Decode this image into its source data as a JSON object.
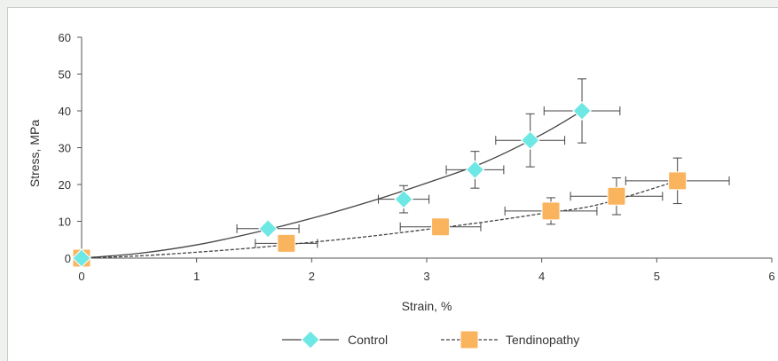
{
  "chart_data": {
    "type": "scatter",
    "xlabel": "Strain, %",
    "ylabel": "Stress, MPa",
    "xlim": [
      0,
      6
    ],
    "ylim": [
      0,
      60
    ],
    "xticks": [
      "0",
      "1",
      "2",
      "3",
      "4",
      "5",
      "6"
    ],
    "yticks": [
      "0",
      "10",
      "20",
      "30",
      "40",
      "50",
      "60"
    ],
    "grid": false,
    "legend_position": "bottom",
    "series": [
      {
        "name": "Control",
        "marker": "diamond",
        "color": "#6ee8e4",
        "line_style": "solid",
        "points": [
          {
            "x": 0,
            "y": 0,
            "xerr": 0,
            "yerr": 0
          },
          {
            "x": 1.62,
            "y": 8,
            "xerr": 0.27,
            "yerr": 0
          },
          {
            "x": 2.8,
            "y": 16,
            "xerr": 0.22,
            "yerr": 3.7
          },
          {
            "x": 3.42,
            "y": 24,
            "xerr": 0.25,
            "yerr": 5
          },
          {
            "x": 3.9,
            "y": 32,
            "xerr": 0.3,
            "yerr": 7.2
          },
          {
            "x": 4.35,
            "y": 40,
            "xerr": 0.33,
            "yerr": 8.7
          }
        ],
        "curve": [
          [
            0,
            0
          ],
          [
            0.5,
            1.3
          ],
          [
            1,
            3.6
          ],
          [
            1.5,
            6.9
          ],
          [
            2,
            10.8
          ],
          [
            2.5,
            15.3
          ],
          [
            3,
            20.4
          ],
          [
            3.5,
            26
          ],
          [
            4,
            33.6
          ],
          [
            4.35,
            40
          ]
        ]
      },
      {
        "name": "Tendinopathy",
        "marker": "square",
        "color": "#fbb45e",
        "line_style": "dashed",
        "points": [
          {
            "x": 0,
            "y": 0,
            "xerr": 0,
            "yerr": 0
          },
          {
            "x": 1.78,
            "y": 4,
            "xerr": 0.27,
            "yerr": 0
          },
          {
            "x": 3.12,
            "y": 8.5,
            "xerr": 0.35,
            "yerr": 0
          },
          {
            "x": 4.08,
            "y": 12.8,
            "xerr": 0.4,
            "yerr": 3.6
          },
          {
            "x": 4.65,
            "y": 16.8,
            "xerr": 0.4,
            "yerr": 5
          },
          {
            "x": 5.18,
            "y": 21,
            "xerr": 0.45,
            "yerr": 6.2
          }
        ],
        "curve": [
          [
            0,
            0
          ],
          [
            0.5,
            0.6
          ],
          [
            1,
            1.6
          ],
          [
            1.5,
            2.8
          ],
          [
            2,
            4.3
          ],
          [
            2.5,
            5.9
          ],
          [
            3,
            7.8
          ],
          [
            3.5,
            9.8
          ],
          [
            4,
            12.1
          ],
          [
            4.5,
            14.6
          ],
          [
            5.18,
            21
          ]
        ]
      }
    ]
  }
}
